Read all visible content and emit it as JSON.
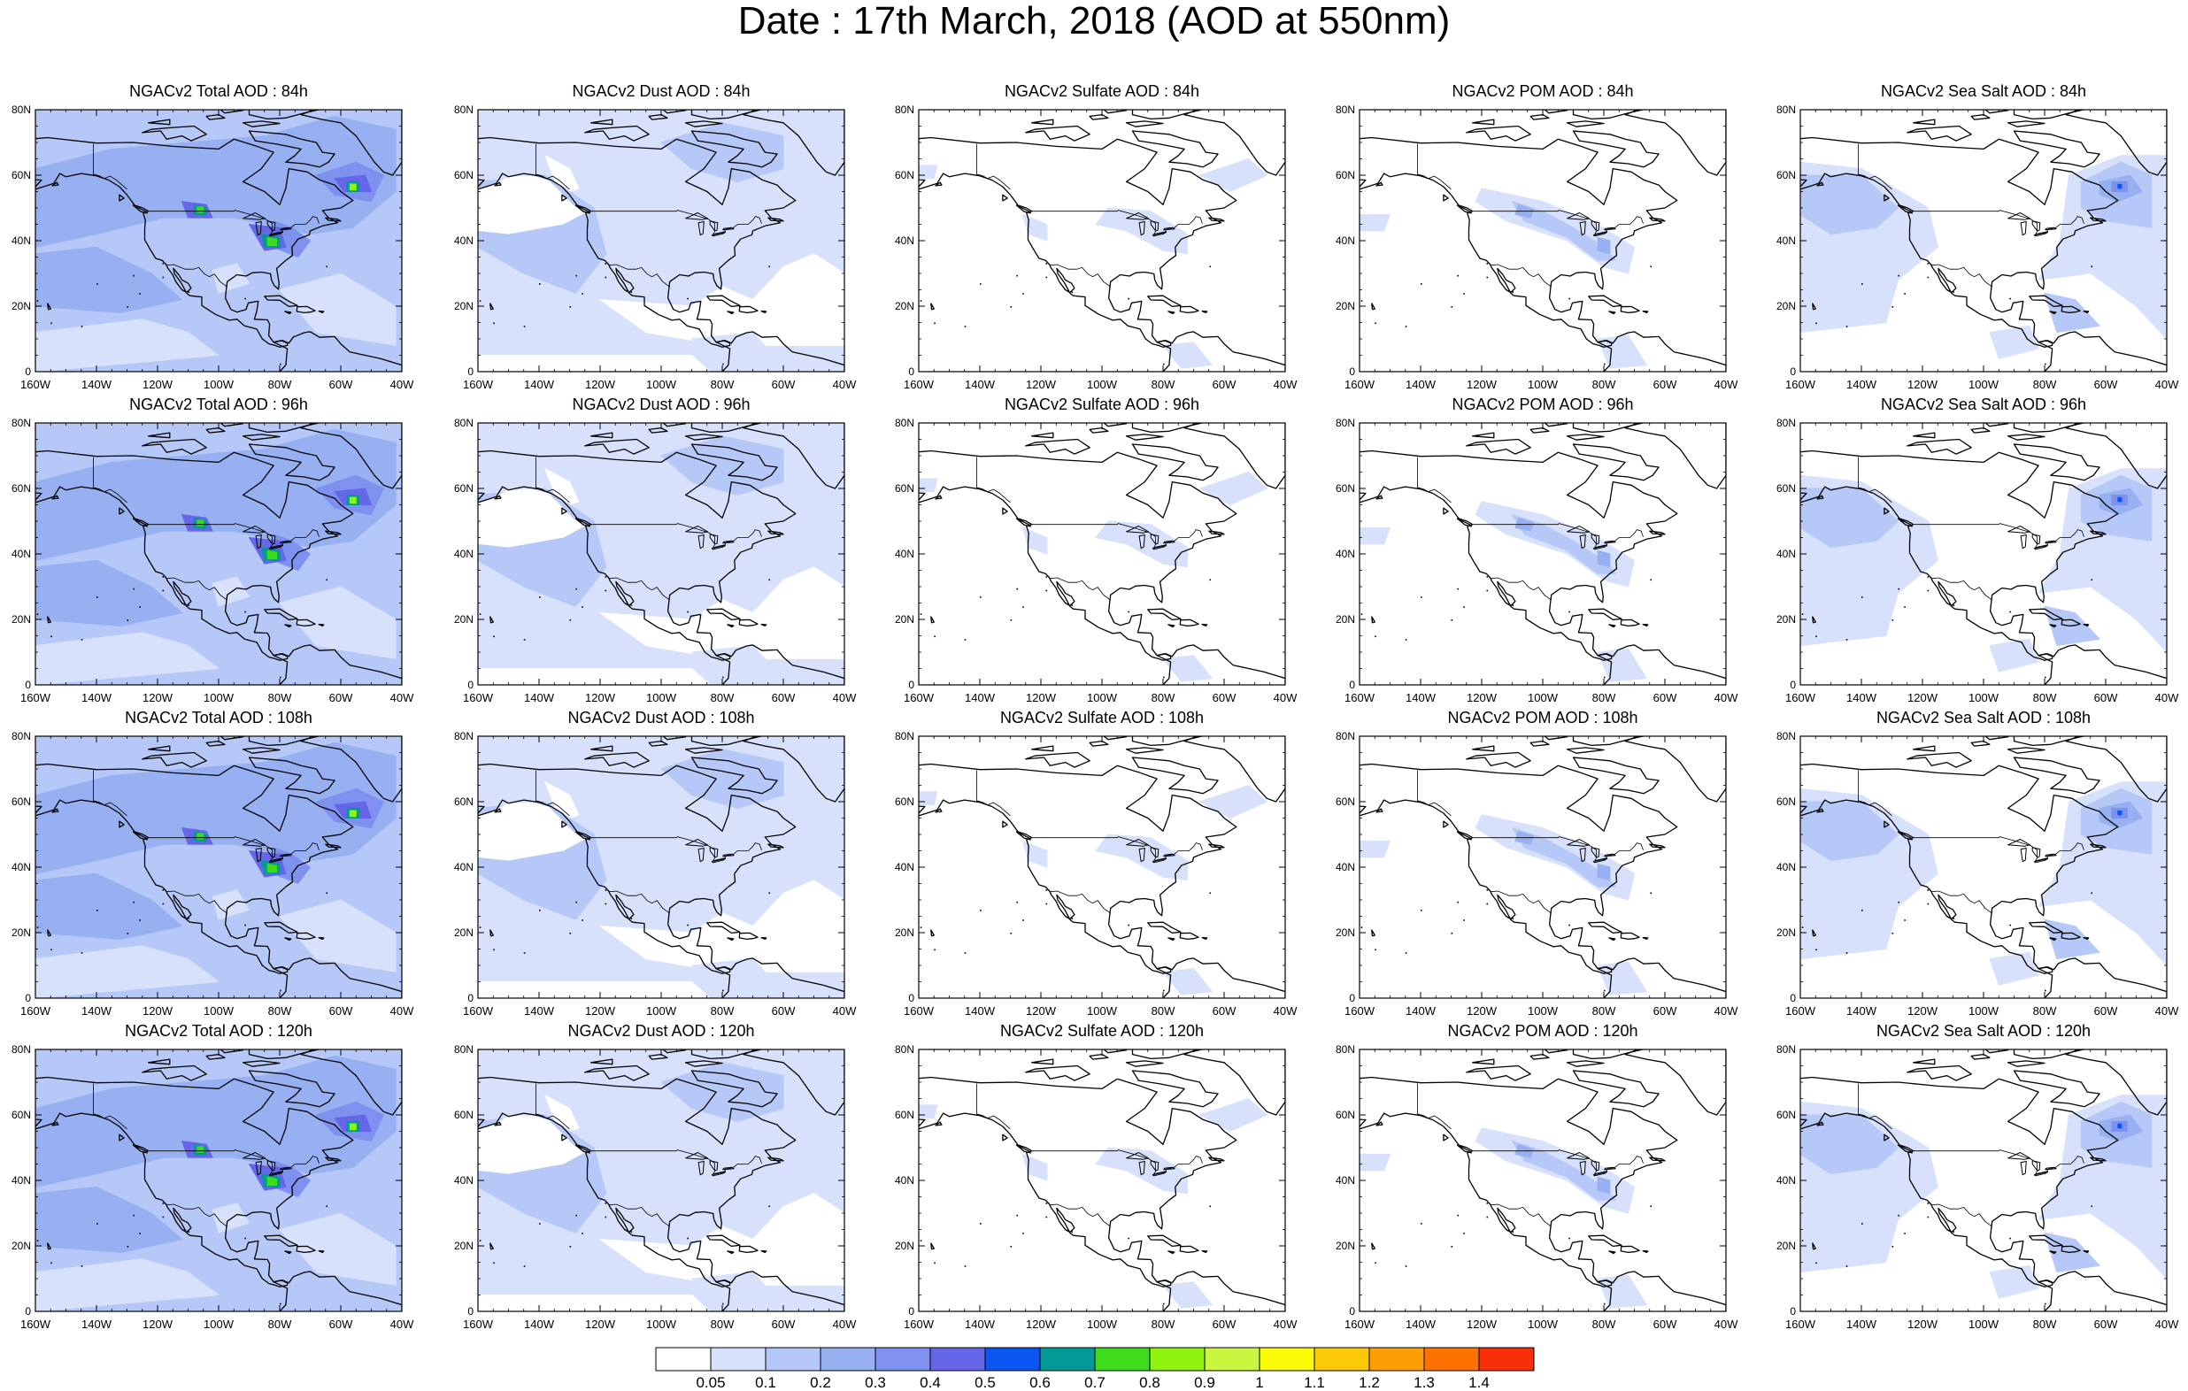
{
  "title": "Date : 17th March, 2018 (AOD at 550nm)",
  "yticks": [
    "0",
    "20N",
    "40N",
    "60N",
    "80N"
  ],
  "xticks": [
    "160W",
    "140W",
    "120W",
    "100W",
    "80W",
    "60W",
    "40W"
  ],
  "colorbar": {
    "levels": [
      "0.05",
      "0.1",
      "0.2",
      "0.3",
      "0.4",
      "0.5",
      "0.6",
      "0.7",
      "0.8",
      "0.9",
      "1",
      "1.1",
      "1.2",
      "1.3",
      "1.4"
    ],
    "colors": [
      "#ffffff",
      "#d7e1fb",
      "#b6c8f7",
      "#97b0f2",
      "#7e91ee",
      "#6566e8",
      "#0b55f1",
      "#019a95",
      "#3ddb19",
      "#90f40f",
      "#c9f63e",
      "#fcfb07",
      "#fdc805",
      "#fe9e04",
      "#fe7202",
      "#f83009"
    ]
  },
  "rows": [
    {
      "hour": "84h",
      "panels": [
        {
          "title": "NGACv2 Total AOD : 84h",
          "species": "total"
        },
        {
          "title": "NGACv2 Dust AOD : 84h",
          "species": "dust"
        },
        {
          "title": "NGACv2 Sulfate AOD : 84h",
          "species": "sulfate"
        },
        {
          "title": "NGACv2 POM AOD : 84h",
          "species": "pom"
        },
        {
          "title": "NGACv2 Sea Salt AOD : 84h",
          "species": "seasalt"
        }
      ]
    },
    {
      "hour": "96h",
      "panels": [
        {
          "title": "NGACv2 Total AOD : 96h",
          "species": "total"
        },
        {
          "title": "NGACv2 Dust AOD : 96h",
          "species": "dust"
        },
        {
          "title": "NGACv2 Sulfate AOD : 96h",
          "species": "sulfate"
        },
        {
          "title": "NGACv2 POM AOD : 96h",
          "species": "pom"
        },
        {
          "title": "NGACv2 Sea Salt AOD : 96h",
          "species": "seasalt"
        }
      ]
    },
    {
      "hour": "108h",
      "panels": [
        {
          "title": "NGACv2 Total AOD : 108h",
          "species": "total"
        },
        {
          "title": "NGACv2 Dust AOD : 108h",
          "species": "dust"
        },
        {
          "title": "NGACv2 Sulfate AOD : 108h",
          "species": "sulfate"
        },
        {
          "title": "NGACv2 POM AOD : 108h",
          "species": "pom"
        },
        {
          "title": "NGACv2 Sea Salt AOD : 108h",
          "species": "seasalt"
        }
      ]
    },
    {
      "hour": "120h",
      "panels": [
        {
          "title": "NGACv2 Total AOD : 120h",
          "species": "total"
        },
        {
          "title": "NGACv2 Dust AOD : 120h",
          "species": "dust"
        },
        {
          "title": "NGACv2 Sulfate AOD : 120h",
          "species": "sulfate"
        },
        {
          "title": "NGACv2 POM AOD : 120h",
          "species": "pom"
        },
        {
          "title": "NGACv2 Sea Salt AOD : 120h",
          "species": "seasalt"
        }
      ]
    }
  ]
}
